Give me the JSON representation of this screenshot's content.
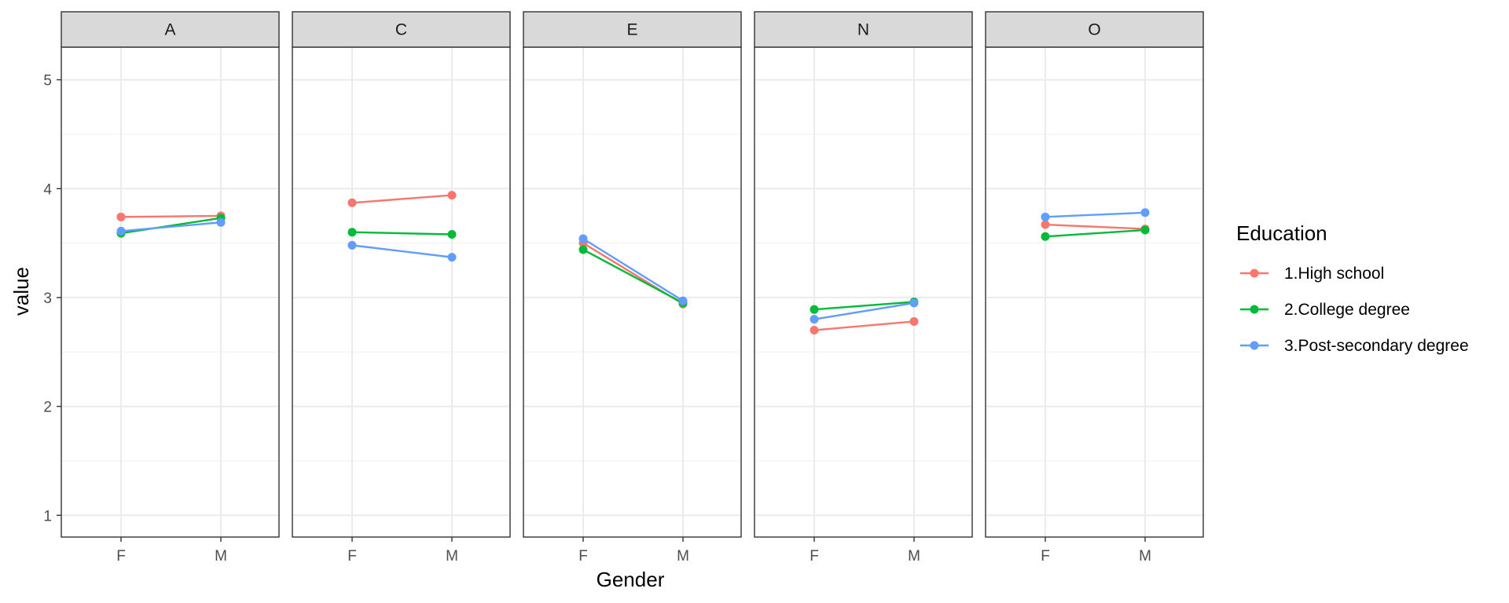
{
  "chart_data": {
    "type": "line",
    "xlabel": "Gender",
    "ylabel": "value",
    "categories": [
      "F",
      "M"
    ],
    "ylim": [
      0.8,
      5.3
    ],
    "yticks": [
      1,
      2,
      3,
      4,
      5
    ],
    "grid": true,
    "facets": [
      "A",
      "C",
      "E",
      "N",
      "O"
    ],
    "legend": {
      "title": "Education",
      "placement": "right"
    },
    "series": [
      {
        "name": "1.High school",
        "color": "#F8766D",
        "values": {
          "A": [
            3.74,
            3.75
          ],
          "C": [
            3.87,
            3.94
          ],
          "E": [
            3.5,
            2.94
          ],
          "N": [
            2.7,
            2.78
          ],
          "O": [
            3.67,
            3.63
          ]
        }
      },
      {
        "name": "2.College degree",
        "color": "#00BA38",
        "values": {
          "A": [
            3.59,
            3.73
          ],
          "C": [
            3.6,
            3.58
          ],
          "E": [
            3.44,
            2.95
          ],
          "N": [
            2.89,
            2.96
          ],
          "O": [
            3.56,
            3.62
          ]
        }
      },
      {
        "name": "3.Post-secondary degree",
        "color": "#619CFF",
        "values": {
          "A": [
            3.61,
            3.69
          ],
          "C": [
            3.48,
            3.37
          ],
          "E": [
            3.54,
            2.97
          ],
          "N": [
            2.8,
            2.95
          ],
          "O": [
            3.74,
            3.78
          ]
        }
      }
    ]
  }
}
